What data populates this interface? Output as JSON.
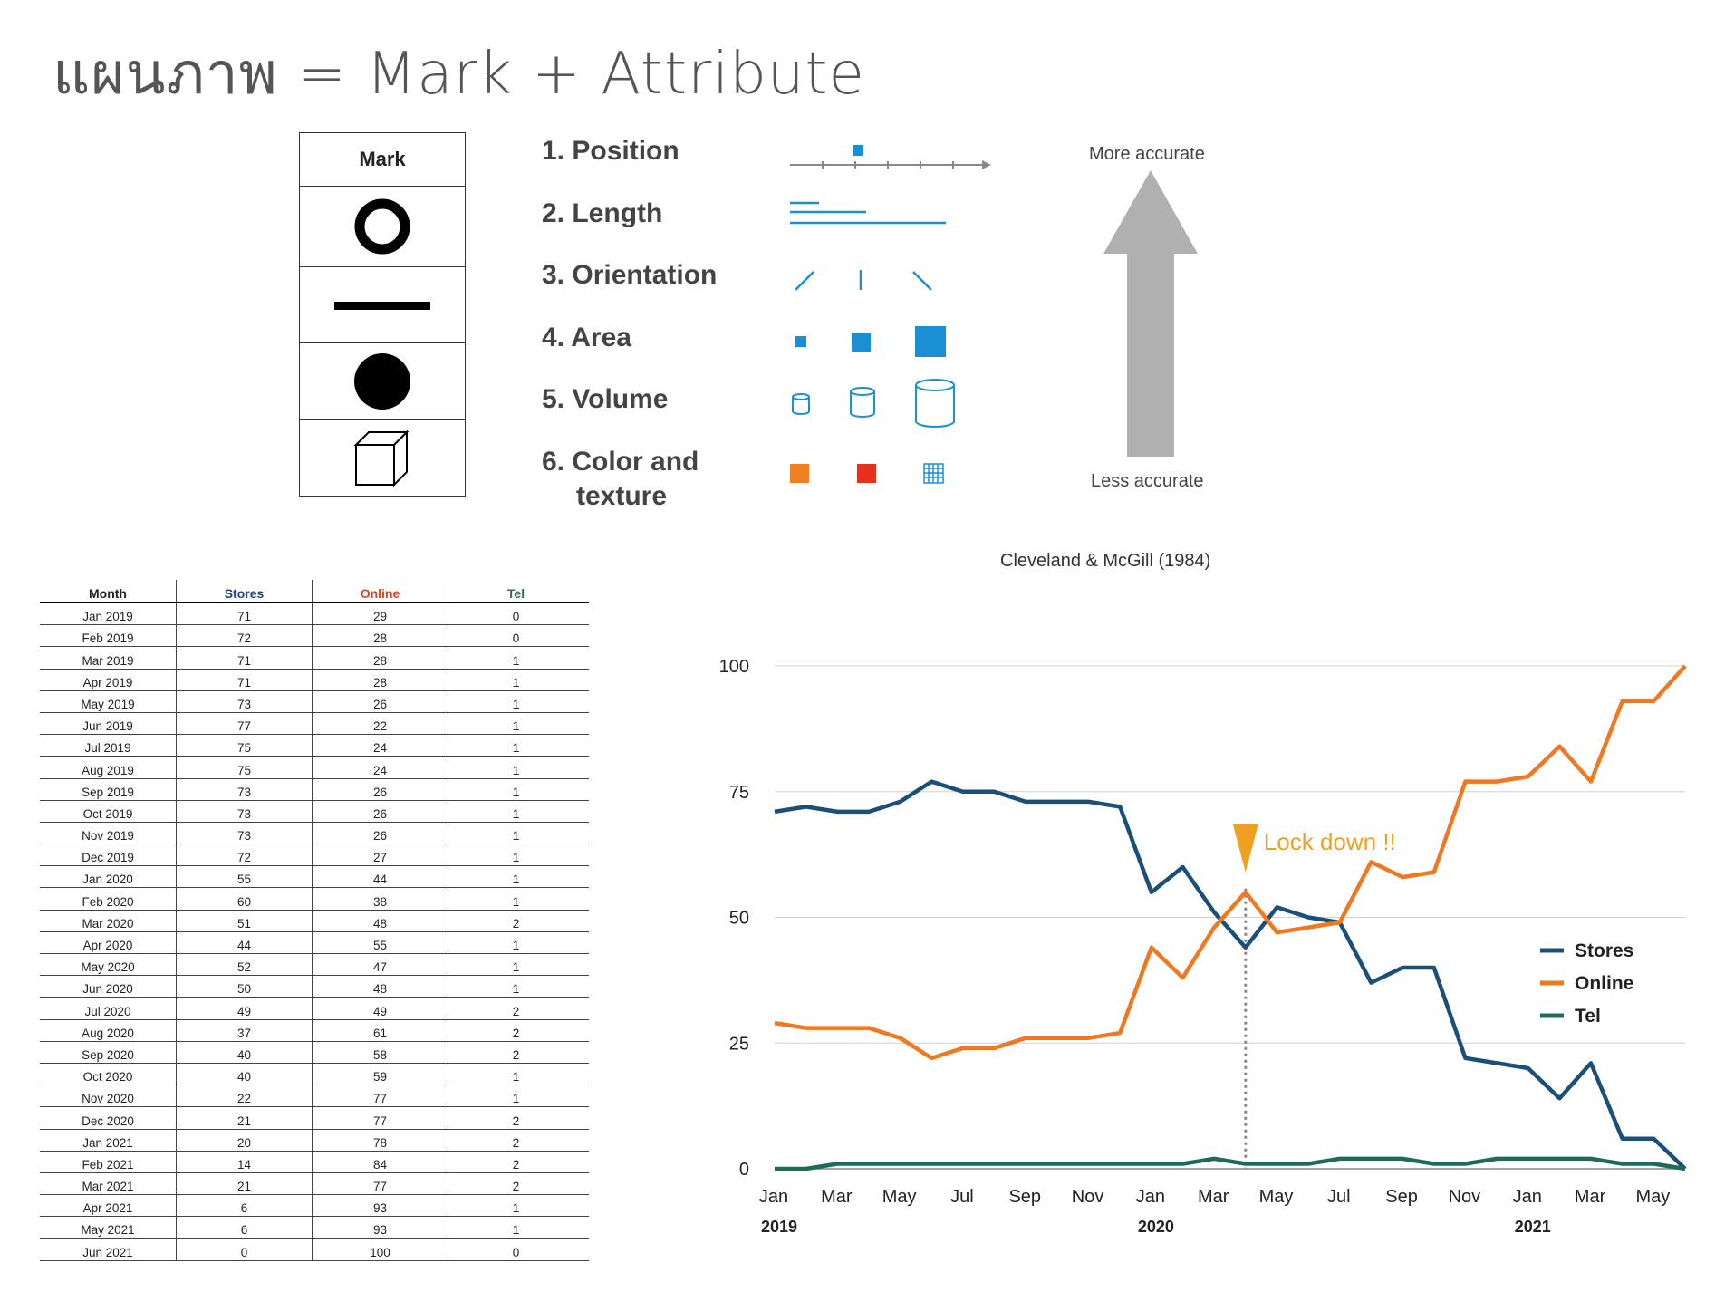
{
  "page": {
    "title": "แผนภาพ = Mark + Attribute"
  },
  "mark_table": {
    "header": "Mark",
    "marks": [
      "circle-outline-icon",
      "line-icon",
      "filled-circle-icon",
      "cube-icon"
    ]
  },
  "attributes": {
    "items": [
      {
        "label": "1. Position"
      },
      {
        "label": "2. Length"
      },
      {
        "label": "3. Orientation"
      },
      {
        "label": "4. Area"
      },
      {
        "label": "5. Volume"
      },
      {
        "label": "6. Color and",
        "label2": "texture"
      }
    ],
    "more_accurate": "More accurate",
    "less_accurate": "Less accurate",
    "citation": "Cleveland & McGill (1984)",
    "colors": {
      "blue": "#1a8fd6",
      "orange": "#f08020",
      "red": "#e83020",
      "arrow": "#b0b0b0"
    }
  },
  "table": {
    "headers": {
      "month": "Month",
      "stores": "Stores",
      "online": "Online",
      "tel": "Tel"
    },
    "rows": [
      [
        "Jan 2019",
        "71",
        "29",
        "0"
      ],
      [
        "Feb 2019",
        "72",
        "28",
        "0"
      ],
      [
        "Mar 2019",
        "71",
        "28",
        "1"
      ],
      [
        "Apr 2019",
        "71",
        "28",
        "1"
      ],
      [
        "May 2019",
        "73",
        "26",
        "1"
      ],
      [
        "Jun 2019",
        "77",
        "22",
        "1"
      ],
      [
        "Jul 2019",
        "75",
        "24",
        "1"
      ],
      [
        "Aug 2019",
        "75",
        "24",
        "1"
      ],
      [
        "Sep 2019",
        "73",
        "26",
        "1"
      ],
      [
        "Oct 2019",
        "73",
        "26",
        "1"
      ],
      [
        "Nov 2019",
        "73",
        "26",
        "1"
      ],
      [
        "Dec 2019",
        "72",
        "27",
        "1"
      ],
      [
        "Jan 2020",
        "55",
        "44",
        "1"
      ],
      [
        "Feb 2020",
        "60",
        "38",
        "1"
      ],
      [
        "Mar 2020",
        "51",
        "48",
        "2"
      ],
      [
        "Apr 2020",
        "44",
        "55",
        "1"
      ],
      [
        "May 2020",
        "52",
        "47",
        "1"
      ],
      [
        "Jun 2020",
        "50",
        "48",
        "1"
      ],
      [
        "Jul 2020",
        "49",
        "49",
        "2"
      ],
      [
        "Aug 2020",
        "37",
        "61",
        "2"
      ],
      [
        "Sep 2020",
        "40",
        "58",
        "2"
      ],
      [
        "Oct 2020",
        "40",
        "59",
        "1"
      ],
      [
        "Nov 2020",
        "22",
        "77",
        "1"
      ],
      [
        "Dec 2020",
        "21",
        "77",
        "2"
      ],
      [
        "Jan 2021",
        "20",
        "78",
        "2"
      ],
      [
        "Feb 2021",
        "14",
        "84",
        "2"
      ],
      [
        "Mar 2021",
        "21",
        "77",
        "2"
      ],
      [
        "Apr 2021",
        "6",
        "93",
        "1"
      ],
      [
        "May 2021",
        "6",
        "93",
        "1"
      ],
      [
        "Jun 2021",
        "0",
        "100",
        "0"
      ]
    ]
  },
  "chart_data": {
    "type": "line",
    "x": [
      "Jan 2019",
      "Feb 2019",
      "Mar 2019",
      "Apr 2019",
      "May 2019",
      "Jun 2019",
      "Jul 2019",
      "Aug 2019",
      "Sep 2019",
      "Oct 2019",
      "Nov 2019",
      "Dec 2019",
      "Jan 2020",
      "Feb 2020",
      "Mar 2020",
      "Apr 2020",
      "May 2020",
      "Jun 2020",
      "Jul 2020",
      "Aug 2020",
      "Sep 2020",
      "Oct 2020",
      "Nov 2020",
      "Dec 2020",
      "Jan 2021",
      "Feb 2021",
      "Mar 2021",
      "Apr 2021",
      "May 2021",
      "Jun 2021"
    ],
    "series": [
      {
        "name": "Stores",
        "color": "#1a4f7a",
        "values": [
          71,
          72,
          71,
          71,
          73,
          77,
          75,
          75,
          73,
          73,
          73,
          72,
          55,
          60,
          51,
          44,
          52,
          50,
          49,
          37,
          40,
          40,
          22,
          21,
          20,
          14,
          21,
          6,
          6,
          0
        ]
      },
      {
        "name": "Online",
        "color": "#f07820",
        "values": [
          29,
          28,
          28,
          28,
          26,
          22,
          24,
          24,
          26,
          26,
          26,
          27,
          44,
          38,
          48,
          55,
          47,
          48,
          49,
          61,
          58,
          59,
          77,
          77,
          78,
          84,
          77,
          93,
          93,
          100
        ]
      },
      {
        "name": "Tel",
        "color": "#1f6b5a",
        "values": [
          0,
          0,
          1,
          1,
          1,
          1,
          1,
          1,
          1,
          1,
          1,
          1,
          1,
          1,
          2,
          1,
          1,
          1,
          2,
          2,
          2,
          1,
          1,
          2,
          2,
          2,
          2,
          1,
          1,
          0
        ]
      }
    ],
    "ylim": [
      0,
      100
    ],
    "yticks": [
      "0",
      "25",
      "50",
      "75",
      "100"
    ],
    "xtick_labels": [
      "Jan",
      "Mar",
      "May",
      "Jul",
      "Sep",
      "Nov",
      "Jan",
      "Mar",
      "May",
      "Jul",
      "Sep",
      "Nov",
      "Jan",
      "Mar",
      "May"
    ],
    "year_labels": [
      {
        "text": "2019",
        "index": 0
      },
      {
        "text": "2020",
        "index": 12
      },
      {
        "text": "2021",
        "index": 24
      }
    ],
    "annotation": {
      "text": "Lock down !!",
      "index": 15,
      "color": "#f0a020"
    },
    "grid": true,
    "legend": "right"
  }
}
